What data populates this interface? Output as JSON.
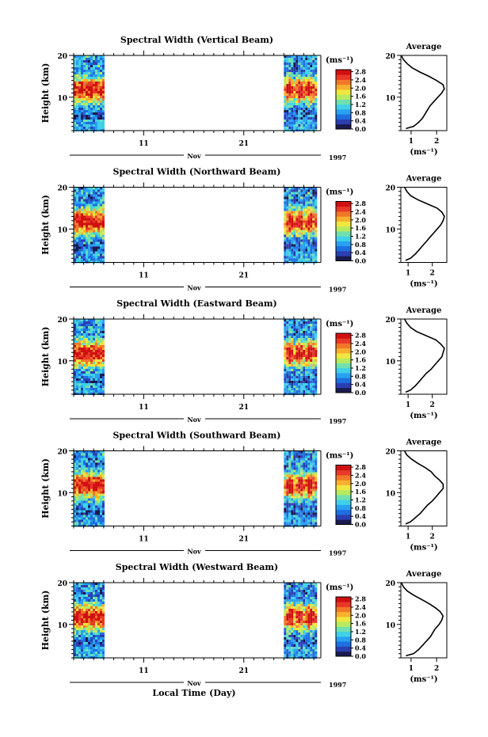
{
  "figure": {
    "xlabel": "Local Time (Day)",
    "month_label": "Nov",
    "year_label": "1997",
    "colorbar_unit": "(ms⁻¹)",
    "avg_title": "Average",
    "avg_xlabel": "(ms⁻¹)"
  },
  "colors": {
    "scale": [
      "#1a1a4d",
      "#2b3fb0",
      "#1e6fe0",
      "#2aa0f0",
      "#40d0e8",
      "#70e0b0",
      "#b8ea60",
      "#f0e640",
      "#f8b030",
      "#f07828",
      "#e83828",
      "#d01010"
    ]
  },
  "chart_data": [
    {
      "type": "heatmap",
      "title": "Spectral Width (Vertical Beam)",
      "ylabel": "Height (km)",
      "y_ticks": [
        "20",
        "10"
      ],
      "x_ticks": [
        "11",
        "21"
      ],
      "colorbar_ticks": [
        "2.8",
        "2.4",
        "2.0",
        "1.6",
        "1.2",
        "0.8",
        "0.4",
        "0.0"
      ],
      "colorbar_range": [
        0.0,
        2.9
      ],
      "ylim": [
        2,
        20
      ],
      "data_days": [
        [
          4,
          7
        ],
        [
          25,
          28.3
        ]
      ],
      "profile": {
        "xlim": [
          0.6,
          2.4
        ],
        "x_ticks": [
          "1",
          "2"
        ],
        "y_ticks": [
          "20",
          "10"
        ],
        "heights": [
          2.5,
          3,
          4,
          5,
          6,
          7,
          8,
          9,
          10,
          11,
          12,
          13,
          14,
          15,
          16,
          17,
          18,
          19,
          20
        ],
        "values": [
          0.8,
          1.1,
          1.3,
          1.45,
          1.55,
          1.65,
          1.75,
          1.9,
          2.05,
          2.2,
          2.3,
          2.25,
          2.0,
          1.7,
          1.35,
          1.05,
          0.85,
          0.7,
          0.62
        ]
      }
    },
    {
      "type": "heatmap",
      "title": "Spectral Width (Northward Beam)",
      "ylabel": "Height (km)",
      "y_ticks": [
        "20",
        "10"
      ],
      "x_ticks": [
        "11",
        "21"
      ],
      "colorbar_ticks": [
        "2.8",
        "2.4",
        "2.0",
        "1.6",
        "1.2",
        "0.8",
        "0.4",
        "0.0"
      ],
      "colorbar_range": [
        0.0,
        2.9
      ],
      "ylim": [
        2,
        20
      ],
      "data_days": [
        [
          4,
          7
        ],
        [
          25,
          28.3
        ]
      ],
      "profile": {
        "xlim": [
          0.7,
          2.6
        ],
        "x_ticks": [
          "1",
          "2"
        ],
        "y_ticks": [
          "20",
          "10"
        ],
        "heights": [
          2.5,
          3,
          4,
          5,
          6,
          7,
          8,
          9,
          10,
          11,
          12,
          13,
          14,
          15,
          16,
          17,
          18,
          19,
          20
        ],
        "values": [
          0.9,
          1.1,
          1.3,
          1.45,
          1.6,
          1.75,
          1.9,
          2.05,
          2.2,
          2.35,
          2.45,
          2.5,
          2.4,
          2.2,
          1.8,
          1.4,
          1.1,
          0.95,
          0.85
        ]
      }
    },
    {
      "type": "heatmap",
      "title": "Spectral Width (Eastward Beam)",
      "ylabel": "Height (km)",
      "y_ticks": [
        "20",
        "10"
      ],
      "x_ticks": [
        "11",
        "21"
      ],
      "colorbar_ticks": [
        "2.8",
        "2.4",
        "2.0",
        "1.6",
        "1.2",
        "0.8",
        "0.4",
        "0.0"
      ],
      "colorbar_range": [
        0.0,
        2.9
      ],
      "ylim": [
        2,
        20
      ],
      "data_days": [
        [
          4,
          7
        ],
        [
          25,
          28.3
        ]
      ],
      "profile": {
        "xlim": [
          0.7,
          2.6
        ],
        "x_ticks": [
          "1",
          "2"
        ],
        "y_ticks": [
          "20",
          "10"
        ],
        "heights": [
          2.5,
          3,
          4,
          5,
          6,
          7,
          8,
          9,
          10,
          11,
          12,
          13,
          14,
          15,
          16,
          17,
          18,
          19,
          20
        ],
        "values": [
          0.9,
          1.1,
          1.3,
          1.45,
          1.6,
          1.75,
          1.95,
          2.1,
          2.25,
          2.4,
          2.45,
          2.5,
          2.35,
          2.15,
          1.75,
          1.35,
          1.1,
          0.95,
          0.85
        ]
      }
    },
    {
      "type": "heatmap",
      "title": "Spectral Width (Southward Beam)",
      "ylabel": "Height (km)",
      "y_ticks": [
        "20",
        "10"
      ],
      "x_ticks": [
        "11",
        "21"
      ],
      "colorbar_ticks": [
        "2.8",
        "2.4",
        "2.0",
        "1.6",
        "1.2",
        "0.8",
        "0.4",
        "0.0"
      ],
      "colorbar_range": [
        0.0,
        2.9
      ],
      "ylim": [
        2,
        20
      ],
      "data_days": [
        [
          4,
          7
        ],
        [
          25,
          28.3
        ]
      ],
      "profile": {
        "xlim": [
          0.7,
          2.6
        ],
        "x_ticks": [
          "1",
          "2"
        ],
        "y_ticks": [
          "20",
          "10"
        ],
        "heights": [
          2.5,
          3,
          4,
          5,
          6,
          7,
          8,
          9,
          10,
          11,
          12,
          13,
          14,
          15,
          16,
          17,
          18,
          19,
          20
        ],
        "values": [
          0.9,
          1.1,
          1.3,
          1.5,
          1.65,
          1.8,
          2.0,
          2.15,
          2.3,
          2.45,
          2.45,
          2.3,
          2.1,
          1.95,
          1.7,
          1.4,
          1.15,
          0.95,
          0.85
        ]
      }
    },
    {
      "type": "heatmap",
      "title": "Spectral Width (Westward Beam)",
      "ylabel": "Height (km)",
      "y_ticks": [
        "20",
        "10"
      ],
      "x_ticks": [
        "11",
        "21"
      ],
      "colorbar_ticks": [
        "2.8",
        "2.4",
        "2.0",
        "1.6",
        "1.2",
        "0.8",
        "0.4",
        "0.0"
      ],
      "colorbar_range": [
        0.0,
        2.9
      ],
      "ylim": [
        2,
        20
      ],
      "data_days": [
        [
          4,
          7
        ],
        [
          25,
          28.3
        ]
      ],
      "profile": {
        "xlim": [
          0.6,
          2.4
        ],
        "x_ticks": [
          "1",
          "2"
        ],
        "y_ticks": [
          "20",
          "10"
        ],
        "heights": [
          2.5,
          3,
          4,
          5,
          6,
          7,
          8,
          9,
          10,
          11,
          12,
          13,
          14,
          15,
          16,
          17,
          18,
          19,
          20
        ],
        "values": [
          0.8,
          1.1,
          1.3,
          1.45,
          1.6,
          1.75,
          1.85,
          1.95,
          2.1,
          2.2,
          2.25,
          2.15,
          1.95,
          1.7,
          1.4,
          1.1,
          0.85,
          0.7,
          0.62
        ]
      }
    }
  ]
}
